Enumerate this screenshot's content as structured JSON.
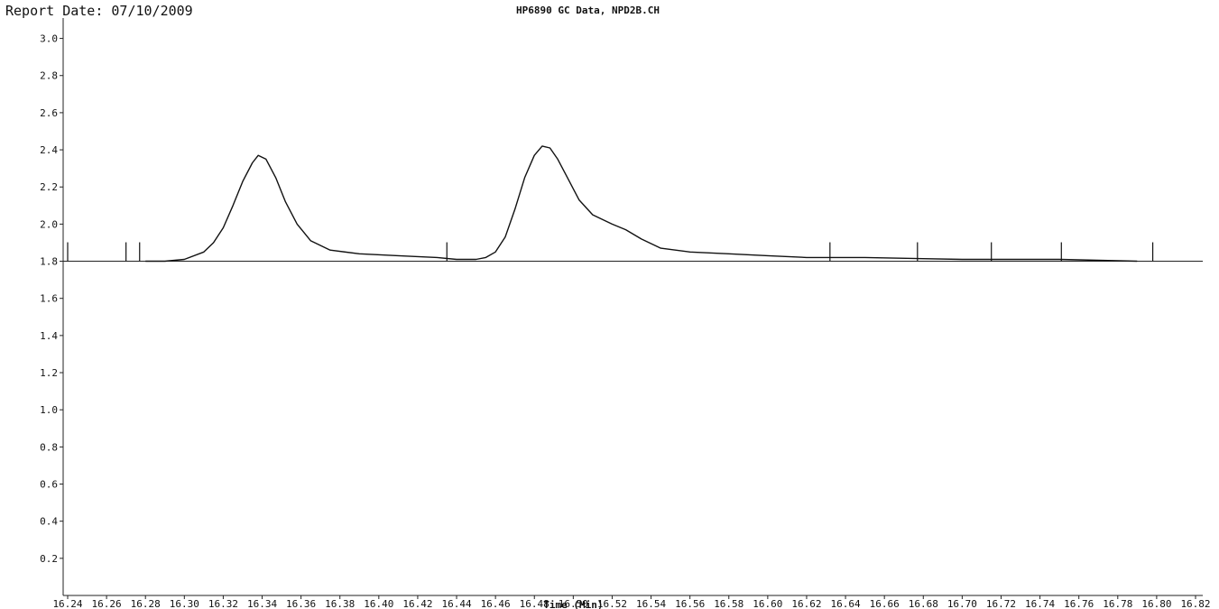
{
  "header": {
    "report_date": "Report Date: 07/10/2009",
    "title": "HP6890 GC Data, NPD2B.CH"
  },
  "chart_data": {
    "type": "line",
    "title": "HP6890 GC Data, NPD2B.CH",
    "xlabel": "Time (Min)",
    "ylabel": "",
    "xlim": [
      16.24,
      16.83
    ],
    "ylim": [
      0.0,
      3.1
    ],
    "x_ticks": [
      16.24,
      16.26,
      16.28,
      16.3,
      16.32,
      16.34,
      16.36,
      16.38,
      16.4,
      16.42,
      16.44,
      16.46,
      16.48,
      16.5,
      16.52,
      16.54,
      16.56,
      16.58,
      16.6,
      16.62,
      16.64,
      16.66,
      16.68,
      16.7,
      16.72,
      16.74,
      16.76,
      16.78,
      16.8,
      16.82
    ],
    "x_tick_labels": [
      "16.24",
      "16.26",
      "16.28",
      "16.30",
      "16.32",
      "16.34",
      "16.36",
      "16.38",
      "16.40",
      "16.42",
      "16.44",
      "16.46",
      "16.48",
      "16.50",
      "16.52",
      "16.54",
      "16.56",
      "16.58",
      "16.60",
      "16.62",
      "16.64",
      "16.66",
      "16.68",
      "16.70",
      "16.72",
      "16.74",
      "16.76",
      "16.78",
      "16.80",
      "16.82"
    ],
    "y_ticks": [
      0.2,
      0.4,
      0.6,
      0.8,
      1.0,
      1.2,
      1.4,
      1.6,
      1.8,
      2.0,
      2.2,
      2.4,
      2.6,
      2.8,
      3.0
    ],
    "y_tick_labels": [
      "0.2",
      "0.4",
      "0.6",
      "0.8",
      "1.0",
      "1.2",
      "1.4",
      "1.6",
      "1.8",
      "2.0",
      "2.2",
      "2.4",
      "2.6",
      "2.8",
      "3.0"
    ],
    "baseline_y": 1.8,
    "series": [
      {
        "x": [
          16.28,
          16.29,
          16.3,
          16.31,
          16.315,
          16.32,
          16.325,
          16.33,
          16.335,
          16.338,
          16.342,
          16.347,
          16.352,
          16.358,
          16.365,
          16.375,
          16.39,
          16.41,
          16.43,
          16.44,
          16.45,
          16.455,
          16.46,
          16.465,
          16.47,
          16.475,
          16.48,
          16.484,
          16.488,
          16.492,
          16.497,
          16.503,
          16.51,
          16.52,
          16.527,
          16.535,
          16.545,
          16.56,
          16.58,
          16.6,
          16.62,
          16.65,
          16.7,
          16.75,
          16.79
        ],
        "y": [
          1.8,
          1.8,
          1.81,
          1.85,
          1.9,
          1.98,
          2.1,
          2.23,
          2.33,
          2.37,
          2.35,
          2.25,
          2.12,
          2.0,
          1.91,
          1.86,
          1.84,
          1.83,
          1.82,
          1.81,
          1.81,
          1.82,
          1.85,
          1.93,
          2.08,
          2.25,
          2.37,
          2.42,
          2.41,
          2.35,
          2.25,
          2.13,
          2.05,
          2.0,
          1.97,
          1.92,
          1.87,
          1.85,
          1.84,
          1.83,
          1.82,
          1.82,
          1.81,
          1.81,
          1.8
        ]
      }
    ],
    "event_marks_x": [
      16.24,
      16.27,
      16.277,
      16.435,
      16.632,
      16.677,
      16.715,
      16.751,
      16.798
    ]
  }
}
